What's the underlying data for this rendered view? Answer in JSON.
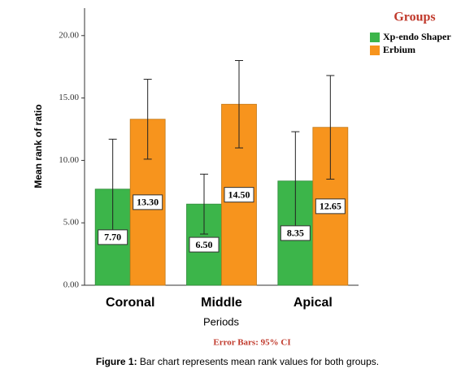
{
  "chart_data": {
    "type": "bar",
    "legend_title": "Groups",
    "categories": [
      "Coronal",
      "Middle",
      "Apical"
    ],
    "series": [
      {
        "name": "Xp-endo Shaper",
        "color": "#3cb54a",
        "values": [
          7.7,
          6.5,
          8.35
        ],
        "value_labels": [
          "7.70",
          "6.50",
          "8.35"
        ],
        "errors": [
          4.0,
          2.4,
          3.95
        ]
      },
      {
        "name": "Erbium",
        "color": "#f7941d",
        "values": [
          13.3,
          14.5,
          12.65
        ],
        "value_labels": [
          "13.30",
          "14.50",
          "12.65"
        ],
        "errors": [
          3.2,
          3.5,
          4.15
        ]
      }
    ],
    "ylim": [
      0,
      22.2
    ],
    "yticks": [
      {
        "value": 0,
        "label": "0.00"
      },
      {
        "value": 5,
        "label": "5.00"
      },
      {
        "value": 10,
        "label": "10.00"
      },
      {
        "value": 15,
        "label": "15.00"
      },
      {
        "value": 20,
        "label": "20.00"
      }
    ],
    "ylabel": "Mean rank of ratio",
    "xlabel": "Periods",
    "error_note": "Error Bars: 95% CI",
    "caption_label": "Figure 1:",
    "caption": "Bar chart represents mean rank values for both groups."
  }
}
